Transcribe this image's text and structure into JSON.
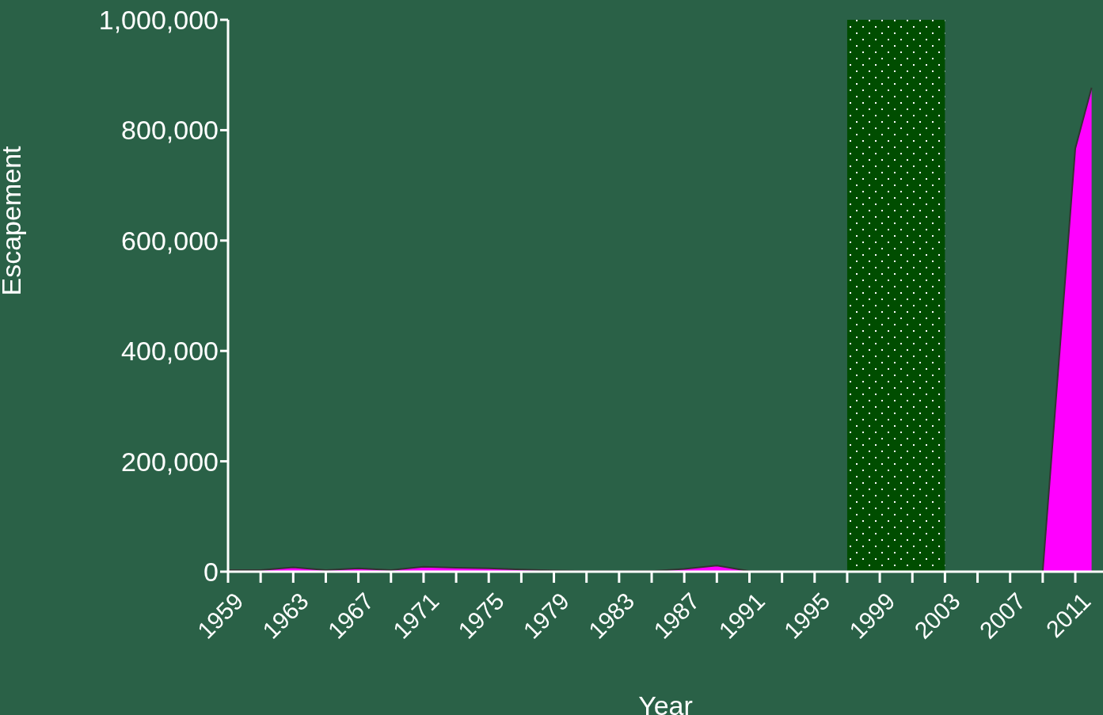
{
  "chart_data": {
    "type": "area",
    "xlabel": "Year",
    "ylabel": "Escapement",
    "x": [
      1959,
      1961,
      1963,
      1965,
      1967,
      1969,
      1971,
      1973,
      1975,
      1977,
      1979,
      1981,
      1983,
      1985,
      1987,
      1989,
      1991,
      1993,
      1995,
      1997,
      1999,
      2001,
      2003,
      2005,
      2007,
      2009,
      2011,
      2012
    ],
    "series": [
      {
        "color": "#ff00ff",
        "values": [
          3000,
          3000,
          8000,
          3000,
          6000,
          3000,
          9000,
          7000,
          6000,
          4000,
          2000,
          1000,
          1000,
          1000,
          5000,
          11000,
          1000,
          500,
          500,
          0,
          null,
          null,
          0,
          0,
          0,
          0,
          767000,
          877000
        ]
      }
    ],
    "xlim": [
      1959,
      2012.7
    ],
    "xticks": [
      {
        "value": 1959,
        "label": "1959"
      },
      {
        "value": 1961,
        "label": null
      },
      {
        "value": 1963,
        "label": "1963"
      },
      {
        "value": 1965,
        "label": null
      },
      {
        "value": 1967,
        "label": "1967"
      },
      {
        "value": 1969,
        "label": null
      },
      {
        "value": 1971,
        "label": "1971"
      },
      {
        "value": 1973,
        "label": null
      },
      {
        "value": 1975,
        "label": "1975"
      },
      {
        "value": 1977,
        "label": null
      },
      {
        "value": 1979,
        "label": "1979"
      },
      {
        "value": 1981,
        "label": null
      },
      {
        "value": 1983,
        "label": "1983"
      },
      {
        "value": 1985,
        "label": null
      },
      {
        "value": 1987,
        "label": "1987"
      },
      {
        "value": 1989,
        "label": null
      },
      {
        "value": 1991,
        "label": "1991"
      },
      {
        "value": 1993,
        "label": null
      },
      {
        "value": 1995,
        "label": "1995"
      },
      {
        "value": 1997,
        "label": null
      },
      {
        "value": 1999,
        "label": "1999"
      },
      {
        "value": 2001,
        "label": null
      },
      {
        "value": 2003,
        "label": "2003"
      },
      {
        "value": 2005,
        "label": null
      },
      {
        "value": 2007,
        "label": "2007"
      },
      {
        "value": 2009,
        "label": null
      },
      {
        "value": 2011,
        "label": "2011"
      }
    ],
    "ylim": [
      0,
      1000000
    ],
    "yticks": [
      {
        "value": 0,
        "label": "0"
      },
      {
        "value": 200000,
        "label": "200,000"
      },
      {
        "value": 400000,
        "label": "400,000"
      },
      {
        "value": 600000,
        "label": "600,000"
      },
      {
        "value": 800000,
        "label": "800,000"
      },
      {
        "value": 1000000,
        "label": "1,000,000"
      }
    ],
    "bands": [
      {
        "axis": "x",
        "from": 1997,
        "to": 2003,
        "color": "#004d00"
      }
    ],
    "grid": false,
    "legend": false
  }
}
